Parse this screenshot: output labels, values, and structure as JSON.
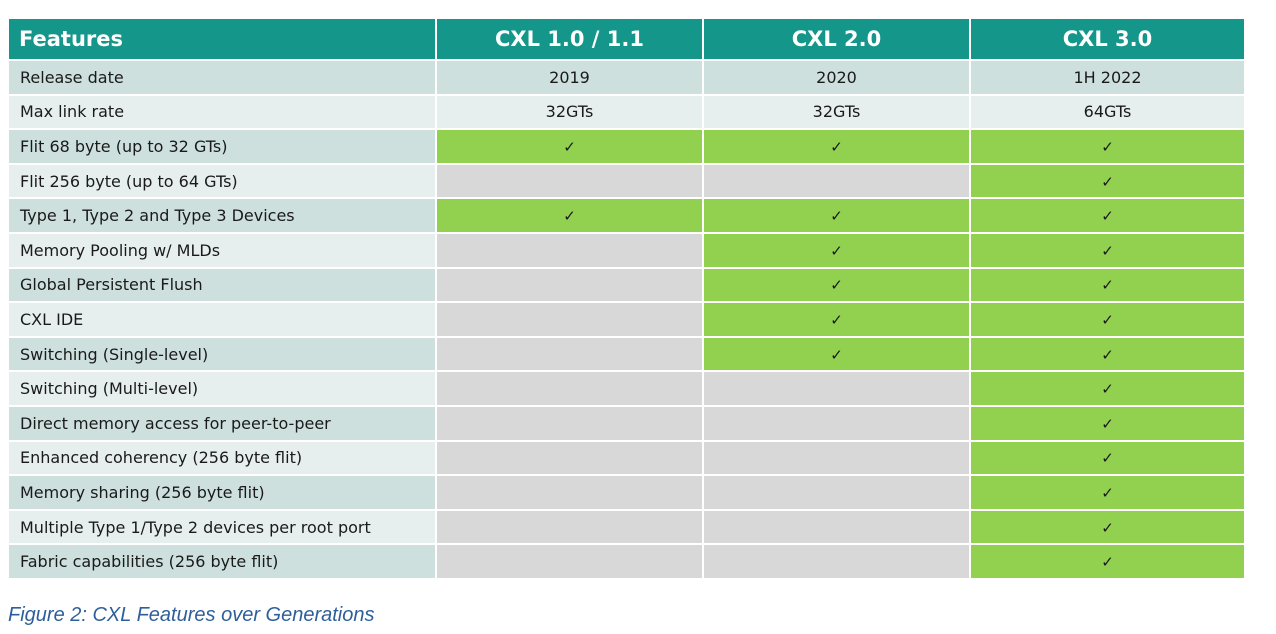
{
  "table": {
    "headers": [
      "Features",
      "CXL 1.0 / 1.1",
      "CXL 2.0",
      "CXL 3.0"
    ],
    "info_rows": [
      {
        "feature": "Release date",
        "values": [
          "2019",
          "2020",
          "1H 2022"
        ]
      },
      {
        "feature": "Max link rate",
        "values": [
          "32GTs",
          "32GTs",
          "64GTs"
        ]
      }
    ],
    "check_symbol": "✓",
    "feature_rows": [
      {
        "feature": "Flit 68 byte (up to 32 GTs)",
        "support": [
          true,
          true,
          true
        ]
      },
      {
        "feature": "Flit 256 byte (up to 64 GTs)",
        "support": [
          false,
          false,
          true
        ]
      },
      {
        "feature": "Type 1, Type 2 and Type 3 Devices",
        "support": [
          true,
          true,
          true
        ]
      },
      {
        "feature": "Memory Pooling w/ MLDs",
        "support": [
          false,
          true,
          true
        ]
      },
      {
        "feature": "Global Persistent Flush",
        "support": [
          false,
          true,
          true
        ]
      },
      {
        "feature": "CXL IDE",
        "support": [
          false,
          true,
          true
        ]
      },
      {
        "feature": "Switching (Single-level)",
        "support": [
          false,
          true,
          true
        ]
      },
      {
        "feature": "Switching (Multi-level)",
        "support": [
          false,
          false,
          true
        ]
      },
      {
        "feature": "Direct memory access for peer-to-peer",
        "support": [
          false,
          false,
          true
        ]
      },
      {
        "feature": "Enhanced coherency (256 byte flit)",
        "support": [
          false,
          false,
          true
        ]
      },
      {
        "feature": "Memory sharing (256 byte flit)",
        "support": [
          false,
          false,
          true
        ]
      },
      {
        "feature": "Multiple Type 1/Type 2 devices per root port",
        "support": [
          false,
          false,
          true
        ]
      },
      {
        "feature": "Fabric capabilities (256 byte flit)",
        "support": [
          false,
          false,
          true
        ]
      }
    ]
  },
  "caption": "Figure 2: CXL Features over Generations",
  "colors": {
    "header_bg": "#14968a",
    "supported_bg": "#92d050",
    "unsupported_bg": "#d8d8d8",
    "row_alt_a": "#cde0de",
    "row_alt_b": "#e6efee",
    "caption": "#2e5f9a"
  }
}
